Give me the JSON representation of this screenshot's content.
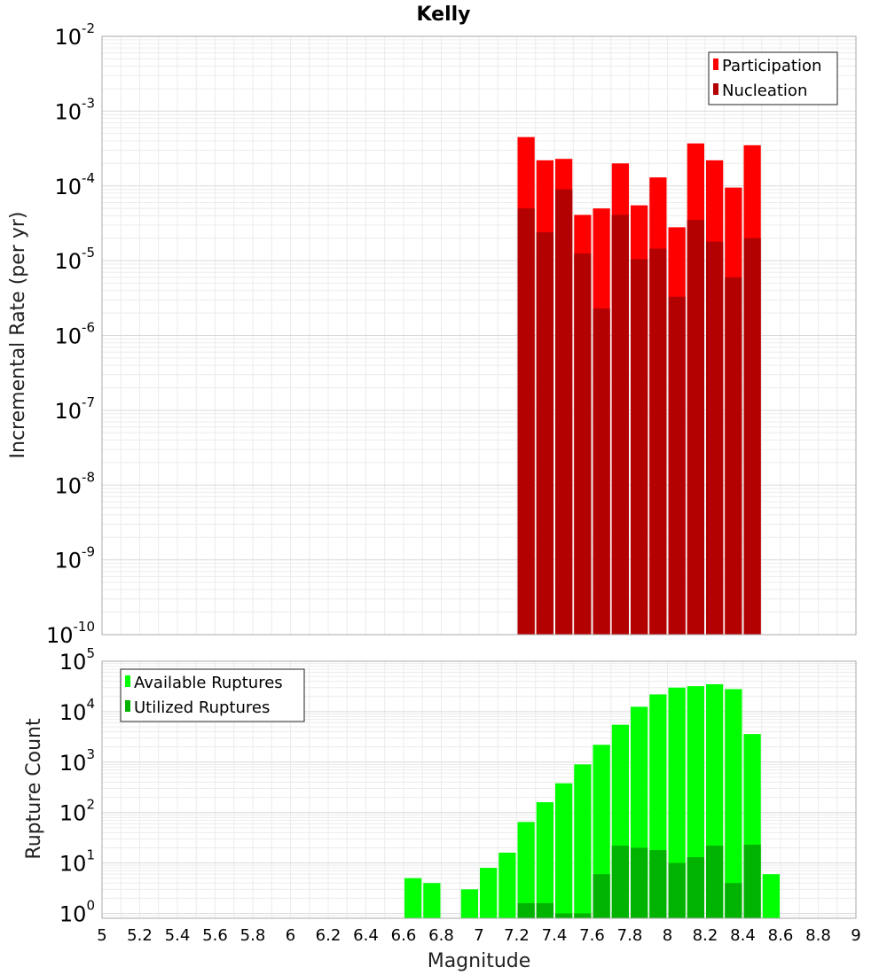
{
  "chart_data": [
    {
      "type": "bar",
      "title": "Kelly",
      "ylabel": "Incremental Rate (per yr)",
      "yscale": "log",
      "ylim": [
        1e-10,
        0.01
      ],
      "xlim": [
        5,
        9
      ],
      "bin_width": 0.1,
      "y_tick_exponents": [
        -10,
        -9,
        -8,
        -7,
        -6,
        -5,
        -4,
        -3,
        -2
      ],
      "legend_position": "top-right",
      "series": [
        {
          "name": "Participation",
          "color": "#ff0000",
          "x": [
            7.25,
            7.35,
            7.45,
            7.55,
            7.65,
            7.75,
            7.85,
            7.95,
            8.05,
            8.15,
            8.25,
            8.35,
            8.45
          ],
          "values": [
            0.00045,
            0.00022,
            0.00023,
            4.1e-05,
            5e-05,
            0.0002,
            5.5e-05,
            0.00013,
            2.8e-05,
            0.00037,
            0.00022,
            9.5e-05,
            0.00035
          ]
        },
        {
          "name": "Nucleation",
          "color": "#b30000",
          "x": [
            7.25,
            7.35,
            7.45,
            7.55,
            7.65,
            7.75,
            7.85,
            7.95,
            8.05,
            8.15,
            8.25,
            8.35,
            8.45
          ],
          "values": [
            5e-05,
            2.4e-05,
            9e-05,
            1.25e-05,
            2.3e-06,
            4.1e-05,
            1.05e-05,
            1.45e-05,
            3.3e-06,
            3.5e-05,
            1.8e-05,
            6e-06,
            2e-05
          ]
        }
      ]
    },
    {
      "type": "bar",
      "ylabel": "Rupture Count",
      "xlabel": "Magnitude",
      "yscale": "log",
      "ylim": [
        0.8,
        100000.0
      ],
      "xlim": [
        5,
        9
      ],
      "bin_width": 0.1,
      "y_tick_exponents": [
        0,
        1,
        2,
        3,
        4,
        5
      ],
      "x_ticks": [
        "5",
        "5.2",
        "5.4",
        "5.6",
        "5.8",
        "6",
        "6.2",
        "6.4",
        "6.6",
        "6.8",
        "7",
        "7.2",
        "7.4",
        "7.6",
        "7.8",
        "8",
        "8.2",
        "8.4",
        "8.6",
        "8.8",
        "9"
      ],
      "legend_position": "top-left",
      "series": [
        {
          "name": "Available Ruptures",
          "color": "#00ff00",
          "x": [
            6.65,
            6.75,
            6.95,
            7.05,
            7.15,
            7.25,
            7.35,
            7.45,
            7.55,
            7.65,
            7.75,
            7.85,
            7.95,
            8.05,
            8.15,
            8.25,
            8.35,
            8.45,
            8.55
          ],
          "values": [
            5,
            4,
            3,
            8,
            16,
            65,
            160,
            380,
            900,
            2200,
            5500,
            12500,
            22000,
            30000,
            32000,
            35000,
            28000,
            3600,
            6
          ]
        },
        {
          "name": "Utilized Ruptures",
          "color": "#00b300",
          "x": [
            7.25,
            7.35,
            7.45,
            7.55,
            7.65,
            7.75,
            7.85,
            7.95,
            8.05,
            8.15,
            8.25,
            8.35,
            8.45
          ],
          "values": [
            1.6,
            1.6,
            1.0,
            1.0,
            6,
            22,
            20,
            18,
            10,
            13,
            22,
            4,
            23
          ]
        }
      ]
    }
  ]
}
